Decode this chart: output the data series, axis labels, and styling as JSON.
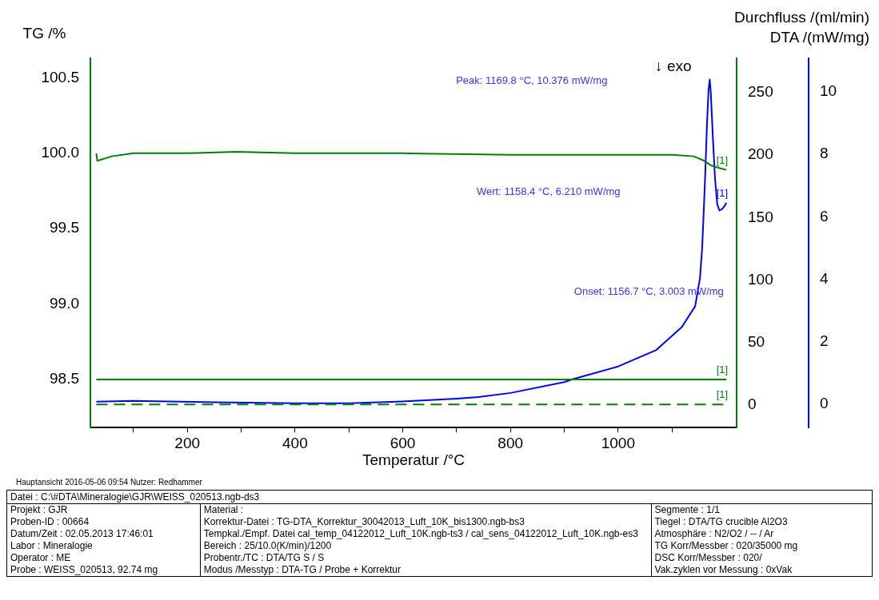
{
  "chart_data": {
    "type": "line",
    "xlabel": "Temperatur /°C",
    "ylabel": "TG /%",
    "y2label": "Durchfluss /(ml/min)",
    "y3label": "DTA /(mW/mg)",
    "xlim": [
      20,
      1220
    ],
    "xticks": [
      {
        "value": 100,
        "label": null
      },
      200,
      {
        "value": 300,
        "label": null
      },
      400,
      {
        "value": 500,
        "label": null
      },
      600,
      {
        "value": 700,
        "label": null
      },
      800,
      {
        "value": 900,
        "label": null
      },
      1000,
      {
        "value": 1100,
        "label": null
      }
    ],
    "ylim": [
      98.18,
      100.63
    ],
    "yticks": [
      98.5,
      {
        "value": 99.0,
        "label": "99.0"
      },
      99.5,
      {
        "value": 100.0,
        "label": "100.0"
      },
      100.5
    ],
    "y2lim": [
      -18.5,
      277.7
    ],
    "y2ticks": [
      0,
      50,
      100,
      150,
      200,
      250
    ],
    "y3lim": [
      -0.76,
      11.08
    ],
    "y3ticks": [
      0,
      2,
      4,
      6,
      8,
      10
    ],
    "grid": false,
    "legend": false,
    "series": [
      {
        "name": "[1]",
        "type": "line",
        "color": "#008000",
        "x": [
          31,
          33,
          60,
          100,
          200,
          290,
          400,
          600,
          800,
          1000,
          1100,
          1140,
          1160,
          1172,
          1190,
          1201
        ],
        "values": [
          100.0,
          99.95,
          99.98,
          100.0,
          100.0,
          100.01,
          100.0,
          100.0,
          99.99,
          99.99,
          99.99,
          99.98,
          99.95,
          99.92,
          99.9,
          99.89
        ]
      },
      {
        "name": "[1]",
        "type": "line",
        "axis": "y2",
        "color": "#008000",
        "x": [
          31,
          1201
        ],
        "values": [
          20,
          20
        ]
      },
      {
        "name": "[1]",
        "type": "line",
        "axis": "y2",
        "color": "#008000",
        "line_style": "dashed",
        "x": [
          31,
          1201
        ],
        "values": [
          0,
          0
        ]
      },
      {
        "name": "[1]",
        "type": "line",
        "axis": "y3",
        "color": "#0000ff",
        "x": [
          31,
          100,
          250,
          400,
          500,
          600,
          700,
          740,
          800,
          900,
          915,
          1000,
          1070,
          1118,
          1143,
          1152,
          1156,
          1159,
          1162,
          1165,
          1168,
          1170,
          1172,
          1176,
          1180,
          1184,
          1188,
          1193,
          1198,
          1201
        ],
        "values": [
          0.07,
          0.1,
          0.05,
          0.02,
          0.02,
          0.08,
          0.17,
          0.22,
          0.35,
          0.7,
          0.79,
          1.2,
          1.72,
          2.46,
          3.13,
          4.04,
          5.0,
          6.21,
          7.5,
          9.0,
          10.1,
          10.4,
          10.0,
          8.5,
          7.2,
          6.4,
          6.2,
          6.25,
          6.35,
          6.45
        ]
      }
    ],
    "annotations": [
      "↓ exo",
      "Peak: 1169.8 °C, 10.376 mW/mg",
      "Wert: 1158.4 °C, 6.210 mW/mg",
      "Onset: 1156.7 °C, 3.003 mW/mg",
      "Hauptansicht   2016-05-06 09:54   Nutzer: Redhammer",
      "Datei : C:\\#DTA\\Mineralogie\\GJR\\WEISS_020513.ngb-ds3",
      "Projekt :  GJR",
      "Proben-ID :  00664",
      "Datum/Zeit :  02.05.2013 17:46:01",
      "Labor :  Mineralogie",
      "Operator :  ME",
      "Probe :  WEISS_020513, 92.74 mg",
      "Material :",
      "Korrektur-Datei :  TG-DTA_Korrektur_30042013_Luft_10K_bis1300.ngb-bs3",
      "Tempkal./Empf. Datei  cal_temp_04122012_Luft_10K.ngb-ts3 / cal_sens_04122012_Luft_10K.ngb-es3",
      "Bereich :  25/10.0(K/min)/1200",
      "Probentr./TC :  DTA/TG S / S",
      "Modus /Messtyp :  DTA-TG / Probe + Korrektur",
      "Segmente :  1/1",
      "Tiegel :  DTA/TG crucible Al2O3",
      "Atmosphäre :  N2/O2 / -- / Ar",
      "TG Korr/Messber :  020/35000 mg",
      "DSC Korr/Messber :  020/",
      "Vak.zyklen vor Messung :  0xVak"
    ]
  }
}
